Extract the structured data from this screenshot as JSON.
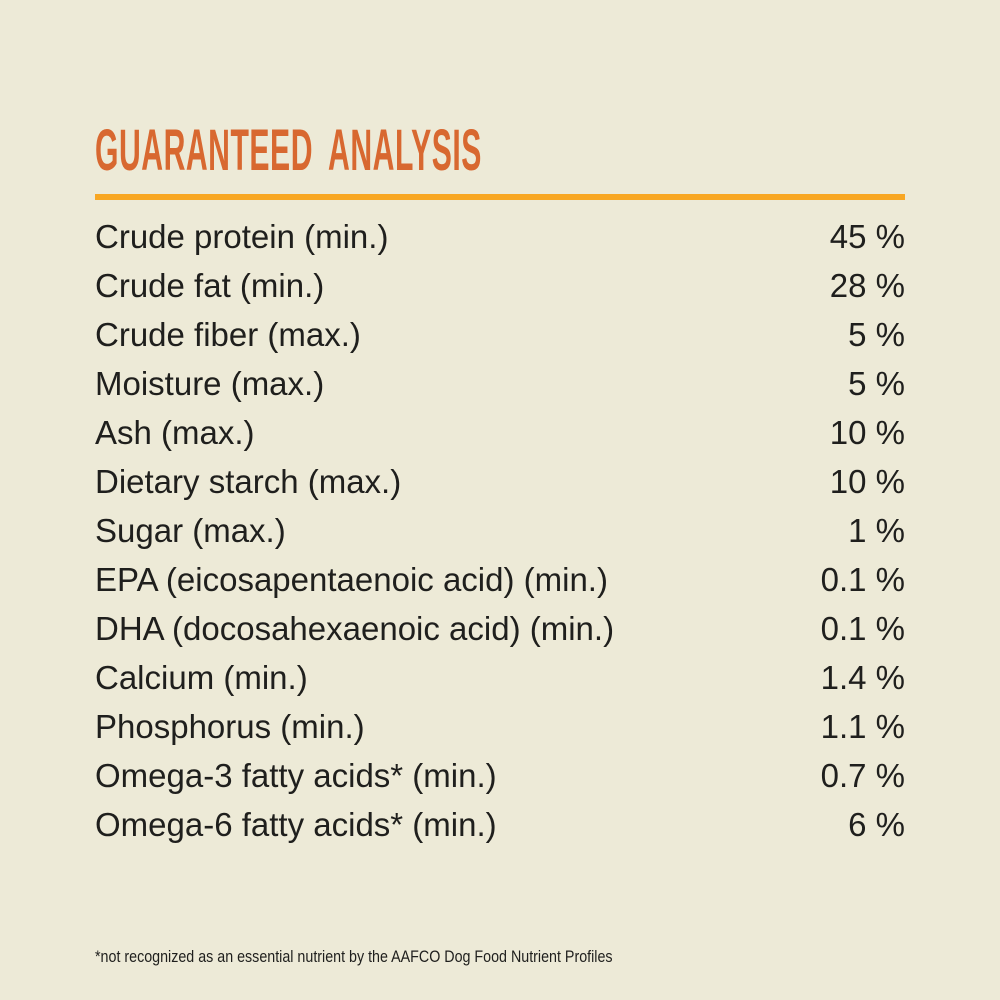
{
  "title": "GUARANTEED ANALYSIS",
  "colors": {
    "background": "#EDEAD7",
    "title": "#D86830",
    "divider": "#F8A723",
    "text": "#1F1F1D"
  },
  "rows": [
    {
      "label": "Crude protein (min.)",
      "value": "45 %"
    },
    {
      "label": "Crude fat (min.)",
      "value": "28 %"
    },
    {
      "label": "Crude fiber (max.)",
      "value": "5 %"
    },
    {
      "label": "Moisture (max.)",
      "value": "5 %"
    },
    {
      "label": "Ash (max.)",
      "value": "10 %"
    },
    {
      "label": "Dietary starch (max.)",
      "value": "10 %"
    },
    {
      "label": "Sugar (max.)",
      "value": "1 %"
    },
    {
      "label": "EPA (eicosapentaenoic acid) (min.)",
      "value": "0.1 %"
    },
    {
      "label": "DHA (docosahexaenoic acid) (min.)",
      "value": "0.1 %"
    },
    {
      "label": "Calcium (min.)",
      "value": "1.4 %"
    },
    {
      "label": "Phosphorus (min.)",
      "value": "1.1 %"
    },
    {
      "label": "Omega-3 fatty acids* (min.)",
      "value": "0.7 %"
    },
    {
      "label": "Omega-6 fatty acids* (min.)",
      "value": "6 %"
    }
  ],
  "footnote": "*not recognized as an essential nutrient by the AAFCO Dog Food Nutrient Profiles"
}
